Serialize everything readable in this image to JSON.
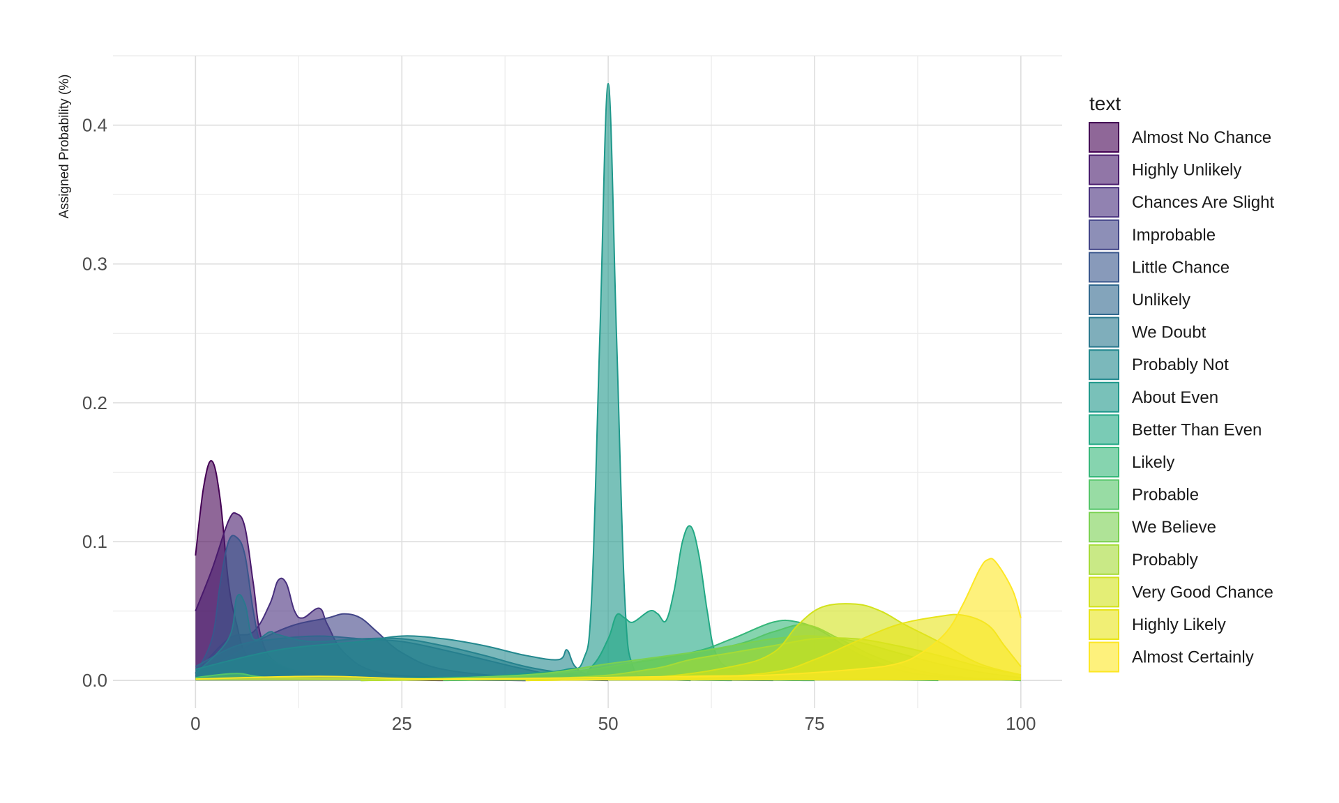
{
  "chart_data": {
    "type": "area",
    "subtype": "density",
    "title": "",
    "xlabel": "",
    "ylabel": "Assigned Probability (%)",
    "xlim": [
      -10,
      105
    ],
    "ylim": [
      -0.02,
      0.45
    ],
    "x_ticks": [
      0,
      25,
      50,
      75,
      100
    ],
    "x_tick_labels": [
      "0",
      "25",
      "50",
      "75",
      "100"
    ],
    "y_ticks": [
      0.0,
      0.1,
      0.2,
      0.3,
      0.4
    ],
    "y_tick_labels": [
      "0.0",
      "0.1",
      "0.2",
      "0.3",
      "0.4"
    ],
    "grid": true,
    "fill_alpha": 0.6,
    "legend": {
      "title": "text",
      "position": "right"
    },
    "series": [
      {
        "name": "Almost No Chance",
        "color": "#440154",
        "points": [
          [
            0,
            0.09
          ],
          [
            1,
            0.14
          ],
          [
            2,
            0.158
          ],
          [
            3,
            0.13
          ],
          [
            4,
            0.07
          ],
          [
            5,
            0.04
          ],
          [
            6,
            0.02
          ],
          [
            8,
            0.008
          ],
          [
            12,
            0.004
          ],
          [
            20,
            0.001
          ],
          [
            30,
            0
          ]
        ]
      },
      {
        "name": "Highly Unlikely",
        "color": "#481A6C",
        "points": [
          [
            0,
            0.05
          ],
          [
            2,
            0.08
          ],
          [
            4,
            0.115
          ],
          [
            5,
            0.12
          ],
          [
            6,
            0.11
          ],
          [
            7,
            0.07
          ],
          [
            8,
            0.03
          ],
          [
            10,
            0.012
          ],
          [
            15,
            0.004
          ],
          [
            25,
            0.001
          ],
          [
            40,
            0
          ]
        ]
      },
      {
        "name": "Chances Are Slight",
        "color": "#472F7D",
        "points": [
          [
            0,
            0.005
          ],
          [
            4,
            0.03
          ],
          [
            7,
            0.035
          ],
          [
            9,
            0.055
          ],
          [
            10,
            0.072
          ],
          [
            11,
            0.07
          ],
          [
            12,
            0.05
          ],
          [
            13,
            0.045
          ],
          [
            15,
            0.052
          ],
          [
            16,
            0.04
          ],
          [
            18,
            0.02
          ],
          [
            22,
            0.006
          ],
          [
            30,
            0.002
          ],
          [
            40,
            0
          ]
        ]
      },
      {
        "name": "Improbable",
        "color": "#414487",
        "points": [
          [
            0,
            0.003
          ],
          [
            5,
            0.02
          ],
          [
            8,
            0.03
          ],
          [
            12,
            0.04
          ],
          [
            16,
            0.045
          ],
          [
            18,
            0.048
          ],
          [
            20,
            0.045
          ],
          [
            22,
            0.035
          ],
          [
            25,
            0.02
          ],
          [
            30,
            0.008
          ],
          [
            40,
            0.002
          ],
          [
            50,
            0
          ]
        ]
      },
      {
        "name": "Little Chance",
        "color": "#39568C",
        "points": [
          [
            0,
            0.005
          ],
          [
            2,
            0.03
          ],
          [
            3,
            0.07
          ],
          [
            4,
            0.1
          ],
          [
            5,
            0.103
          ],
          [
            6,
            0.09
          ],
          [
            7,
            0.05
          ],
          [
            8,
            0.025
          ],
          [
            10,
            0.012
          ],
          [
            15,
            0.004
          ],
          [
            25,
            0.001
          ],
          [
            40,
            0
          ]
        ]
      },
      {
        "name": "Unlikely",
        "color": "#31688E",
        "points": [
          [
            0,
            0.01
          ],
          [
            5,
            0.025
          ],
          [
            10,
            0.03
          ],
          [
            15,
            0.032
          ],
          [
            20,
            0.03
          ],
          [
            25,
            0.028
          ],
          [
            30,
            0.022
          ],
          [
            35,
            0.015
          ],
          [
            40,
            0.008
          ],
          [
            45,
            0.003
          ],
          [
            55,
            0.001
          ],
          [
            70,
            0
          ]
        ]
      },
      {
        "name": "We Doubt",
        "color": "#2A788E",
        "points": [
          [
            0,
            0.005
          ],
          [
            4,
            0.03
          ],
          [
            5,
            0.06
          ],
          [
            6,
            0.055
          ],
          [
            7,
            0.03
          ],
          [
            9,
            0.035
          ],
          [
            10,
            0.033
          ],
          [
            14,
            0.028
          ],
          [
            20,
            0.03
          ],
          [
            25,
            0.03
          ],
          [
            30,
            0.025
          ],
          [
            35,
            0.018
          ],
          [
            40,
            0.01
          ],
          [
            45,
            0.005
          ],
          [
            50,
            0.002
          ],
          [
            60,
            0
          ]
        ]
      },
      {
        "name": "Probably Not",
        "color": "#23888E",
        "points": [
          [
            0,
            0.008
          ],
          [
            10,
            0.022
          ],
          [
            20,
            0.028
          ],
          [
            25,
            0.032
          ],
          [
            30,
            0.03
          ],
          [
            35,
            0.025
          ],
          [
            40,
            0.018
          ],
          [
            44,
            0.015
          ],
          [
            45,
            0.022
          ],
          [
            46,
            0.01
          ],
          [
            48,
            0.004
          ],
          [
            55,
            0.001
          ],
          [
            65,
            0
          ]
        ]
      },
      {
        "name": "About Even",
        "color": "#1F988B",
        "points": [
          [
            0,
            0.001
          ],
          [
            30,
            0.002
          ],
          [
            40,
            0.005
          ],
          [
            45,
            0.008
          ],
          [
            47,
            0.015
          ],
          [
            48,
            0.06
          ],
          [
            49,
            0.25
          ],
          [
            50,
            0.43
          ],
          [
            51,
            0.25
          ],
          [
            52,
            0.06
          ],
          [
            53,
            0.01
          ],
          [
            55,
            0.003
          ],
          [
            60,
            0.001
          ],
          [
            75,
            0
          ]
        ]
      },
      {
        "name": "Better Than Even",
        "color": "#22A884",
        "points": [
          [
            30,
            0
          ],
          [
            45,
            0.002
          ],
          [
            48,
            0.01
          ],
          [
            50,
            0.03
          ],
          [
            51,
            0.047
          ],
          [
            52,
            0.045
          ],
          [
            53,
            0.042
          ],
          [
            55,
            0.05
          ],
          [
            56,
            0.048
          ],
          [
            57,
            0.043
          ],
          [
            58,
            0.065
          ],
          [
            59,
            0.1
          ],
          [
            60,
            0.111
          ],
          [
            61,
            0.09
          ],
          [
            62,
            0.05
          ],
          [
            63,
            0.02
          ],
          [
            65,
            0.008
          ],
          [
            70,
            0.003
          ],
          [
            80,
            0.001
          ],
          [
            90,
            0
          ]
        ]
      },
      {
        "name": "Likely",
        "color": "#35B779",
        "points": [
          [
            20,
            0
          ],
          [
            40,
            0.003
          ],
          [
            50,
            0.01
          ],
          [
            60,
            0.02
          ],
          [
            65,
            0.03
          ],
          [
            70,
            0.042
          ],
          [
            73,
            0.042
          ],
          [
            76,
            0.035
          ],
          [
            80,
            0.02
          ],
          [
            85,
            0.008
          ],
          [
            90,
            0.003
          ],
          [
            100,
            0
          ]
        ]
      },
      {
        "name": "Probable",
        "color": "#54C568",
        "points": [
          [
            0,
            0.002
          ],
          [
            5,
            0.005
          ],
          [
            10,
            0.002
          ],
          [
            30,
            0.001
          ],
          [
            45,
            0.006
          ],
          [
            55,
            0.015
          ],
          [
            65,
            0.025
          ],
          [
            70,
            0.035
          ],
          [
            74,
            0.04
          ],
          [
            78,
            0.03
          ],
          [
            82,
            0.018
          ],
          [
            87,
            0.008
          ],
          [
            92,
            0.003
          ],
          [
            100,
            0
          ]
        ]
      },
      {
        "name": "We Believe",
        "color": "#7AD151",
        "points": [
          [
            20,
            0
          ],
          [
            40,
            0.004
          ],
          [
            50,
            0.012
          ],
          [
            60,
            0.02
          ],
          [
            65,
            0.025
          ],
          [
            70,
            0.03
          ],
          [
            75,
            0.032
          ],
          [
            80,
            0.028
          ],
          [
            85,
            0.02
          ],
          [
            90,
            0.012
          ],
          [
            95,
            0.006
          ],
          [
            100,
            0.002
          ]
        ]
      },
      {
        "name": "Probably",
        "color": "#A5DB36",
        "points": [
          [
            20,
            0
          ],
          [
            45,
            0.002
          ],
          [
            55,
            0.008
          ],
          [
            60,
            0.015
          ],
          [
            65,
            0.02
          ],
          [
            70,
            0.025
          ],
          [
            75,
            0.03
          ],
          [
            80,
            0.03
          ],
          [
            85,
            0.025
          ],
          [
            90,
            0.018
          ],
          [
            95,
            0.01
          ],
          [
            100,
            0.004
          ]
        ]
      },
      {
        "name": "Very Good Chance",
        "color": "#D2E21B",
        "points": [
          [
            40,
            0
          ],
          [
            55,
            0.002
          ],
          [
            65,
            0.01
          ],
          [
            70,
            0.02
          ],
          [
            73,
            0.04
          ],
          [
            76,
            0.053
          ],
          [
            80,
            0.055
          ],
          [
            83,
            0.05
          ],
          [
            86,
            0.04
          ],
          [
            90,
            0.028
          ],
          [
            95,
            0.012
          ],
          [
            100,
            0.004
          ]
        ]
      },
      {
        "name": "Highly Likely",
        "color": "#E8E419",
        "points": [
          [
            40,
            0
          ],
          [
            60,
            0.002
          ],
          [
            70,
            0.006
          ],
          [
            75,
            0.015
          ],
          [
            80,
            0.028
          ],
          [
            85,
            0.04
          ],
          [
            90,
            0.046
          ],
          [
            93,
            0.047
          ],
          [
            96,
            0.04
          ],
          [
            98,
            0.025
          ],
          [
            100,
            0.01
          ]
        ]
      },
      {
        "name": "Almost Certainly",
        "color": "#FDE725",
        "points": [
          [
            0,
            0.001
          ],
          [
            15,
            0.003
          ],
          [
            30,
            0.001
          ],
          [
            60,
            0.003
          ],
          [
            70,
            0.004
          ],
          [
            80,
            0.008
          ],
          [
            85,
            0.012
          ],
          [
            88,
            0.02
          ],
          [
            91,
            0.035
          ],
          [
            93,
            0.055
          ],
          [
            95,
            0.08
          ],
          [
            96,
            0.087
          ],
          [
            97,
            0.085
          ],
          [
            99,
            0.065
          ],
          [
            100,
            0.045
          ]
        ]
      }
    ]
  }
}
